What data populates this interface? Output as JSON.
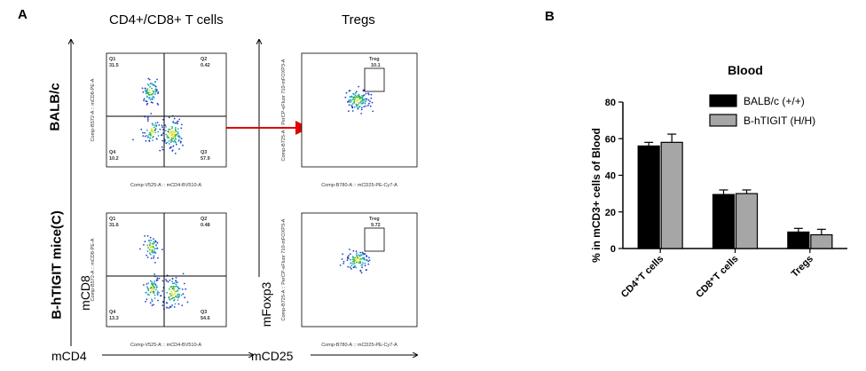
{
  "panel_a": {
    "letter": "A",
    "headers": {
      "left": "CD4+/CD8+ T cells",
      "right": "Tregs"
    },
    "rows": [
      "BALB/c",
      "B-hTIGIT mice(C)"
    ],
    "axis_labels": {
      "mcd8": "mCD8",
      "mcd4": "mCD4",
      "mfoxp3": "mFoxp3",
      "mcd25": "mCD25"
    },
    "flow_axes": {
      "cd48_x": "Comp-V525-A :: mCD4-BV510-A",
      "cd48_y": "Comp-B572-A :: mCD8-PE-A",
      "treg_x": "Comp-B780-A :: mCD25-PE-Cy7-A",
      "treg_y": "Comp-B725-A :: PerCP-eFluor 710-mFOXP3-A"
    },
    "plots": [
      {
        "q1": "Q1",
        "q1v": "31.5",
        "q2": "Q2",
        "q2v": "0.42",
        "q3": "Q3",
        "q3v": "57.9",
        "q4": "Q4",
        "q4v": "10.2",
        "treg": "Treg",
        "tregv": "10.1"
      },
      {
        "q1": "Q1",
        "q1v": "31.6",
        "q2": "Q2",
        "q2v": "0.48",
        "q3": "Q3",
        "q3v": "54.6",
        "q4": "Q4",
        "q4v": "13.3",
        "treg": "Treg",
        "tregv": "9.72"
      }
    ]
  },
  "panel_b": {
    "letter": "B"
  },
  "chart_data": {
    "type": "bar",
    "title": "Blood",
    "ylabel": "% in mCD3+ cells of Blood",
    "xlabel": "",
    "categories": [
      "CD4⁺T cells",
      "CD8⁺T cells",
      "Tregs"
    ],
    "ylim": [
      0,
      80
    ],
    "yticks": [
      "0",
      "20",
      "40",
      "60",
      "80"
    ],
    "series": [
      {
        "name": "BALB/c (+/+)",
        "color": "#000000",
        "values": [
          56,
          29.5,
          9
        ],
        "errors": [
          2,
          2.5,
          2
        ]
      },
      {
        "name": "B-hTIGIT (H/H)",
        "color": "#a6a6a6",
        "values": [
          58,
          30,
          7.5
        ],
        "errors": [
          4.5,
          2,
          3
        ]
      }
    ],
    "legend_position": "top-right",
    "grid": false
  }
}
